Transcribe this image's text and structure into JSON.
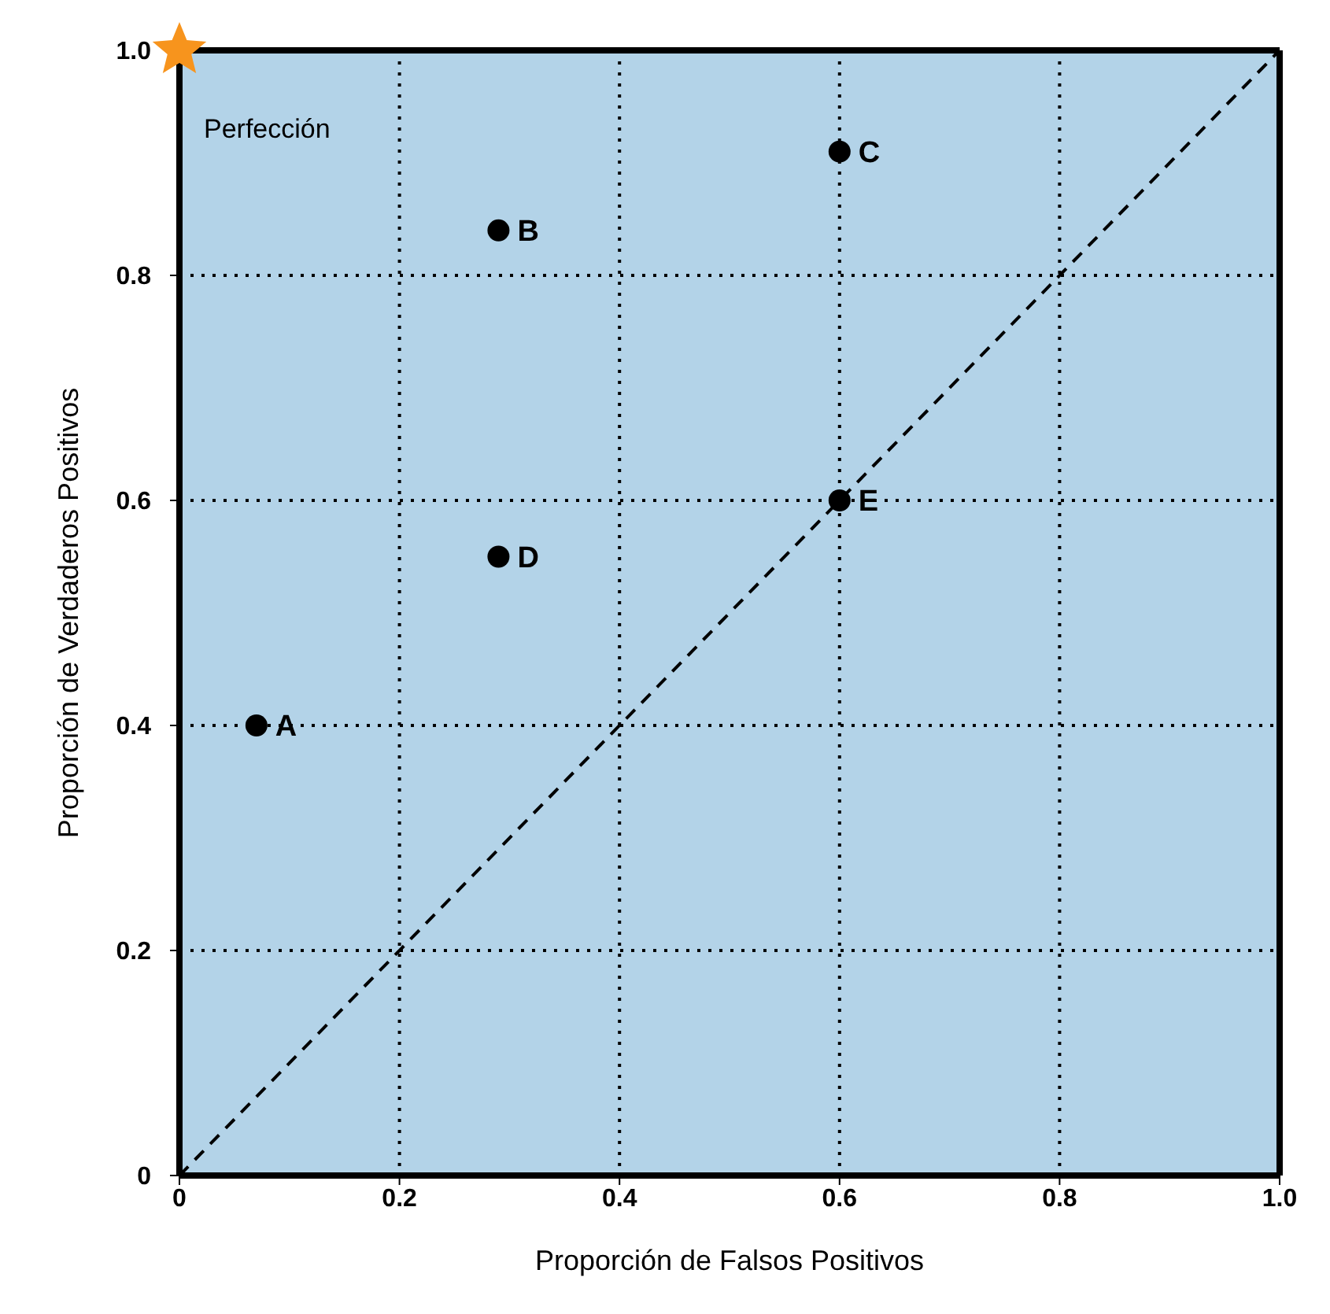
{
  "chart_data": {
    "type": "scatter",
    "xlabel": "Proporción de Falsos Positivos",
    "ylabel": "Proporción de Verdaderos Positivos",
    "xlim": [
      0,
      1
    ],
    "ylim": [
      0,
      1
    ],
    "xticks": [
      0,
      0.2,
      0.4,
      0.6,
      0.8,
      {
        "value": 1,
        "label": "1.0"
      }
    ],
    "yticks": [
      0,
      0.2,
      0.4,
      0.6,
      0.8,
      {
        "value": 1,
        "label": "1.0"
      }
    ],
    "grid": true,
    "legend": false,
    "marker": "circle",
    "series": [
      {
        "type": "line",
        "x": [
          0,
          1
        ],
        "values": [
          0,
          1
        ],
        "color": "#000000",
        "line_style": "dashed",
        "marker": "none"
      },
      {
        "x": [
          0.07,
          0.29,
          0.6,
          0.29,
          0.6
        ],
        "values": [
          0.4,
          0.84,
          0.91,
          0.55,
          0.6
        ],
        "color": "#000000"
      },
      {
        "type": "scatter",
        "name": "Perfección",
        "x": [
          0
        ],
        "values": [
          1
        ],
        "color": "#f7941d",
        "marker": "star"
      }
    ],
    "annotations": [
      {
        "text": "A",
        "x": 0.07,
        "y": 0.4
      },
      {
        "text": "B",
        "x": 0.29,
        "y": 0.84
      },
      {
        "text": "C",
        "x": 0.6,
        "y": 0.91
      },
      {
        "text": "D",
        "x": 0.29,
        "y": 0.55
      },
      {
        "text": "E",
        "x": 0.6,
        "y": 0.6
      }
    ]
  }
}
